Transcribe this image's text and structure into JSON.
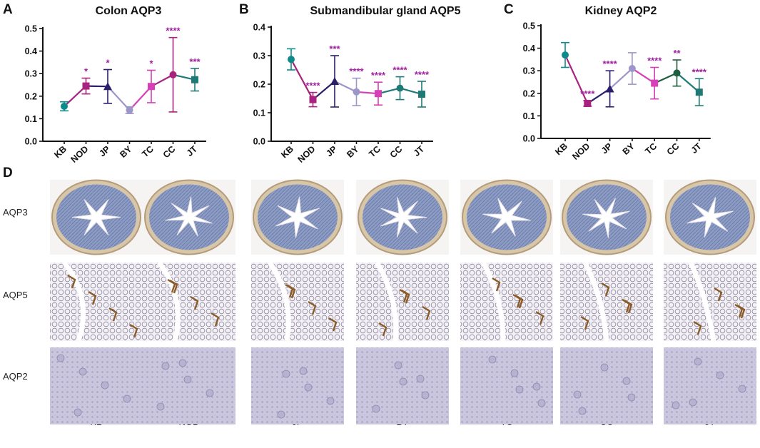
{
  "chart_data": [
    {
      "panel": "A",
      "type": "line",
      "title": "Colon  AQP3",
      "categories": [
        "KB",
        "NOD",
        "JP",
        "BY",
        "TC",
        "CC",
        "JT"
      ],
      "values": [
        0.155,
        0.245,
        0.243,
        0.138,
        0.243,
        0.295,
        0.273
      ],
      "errors": [
        0.02,
        0.035,
        0.075,
        0.015,
        0.072,
        0.165,
        0.05
      ],
      "significance": [
        "",
        "*",
        "*",
        "",
        "*",
        "****",
        "***"
      ],
      "ylim": [
        0,
        0.5
      ],
      "yticks": [
        "0.0",
        "0.1",
        "0.2",
        "0.3",
        "0.4",
        "0.5"
      ],
      "colors": [
        "#0e8a8a",
        "#a8237f",
        "#2b1f6b",
        "#9d96c9",
        "#d63fb6",
        "#a8237f",
        "#1f7a75"
      ]
    },
    {
      "panel": "B",
      "type": "line",
      "title": "Submandibular gland AQP5",
      "categories": [
        "KB",
        "NOD",
        "JP",
        "BY",
        "TC",
        "CC",
        "JT"
      ],
      "values": [
        0.287,
        0.146,
        0.21,
        0.173,
        0.167,
        0.186,
        0.165
      ],
      "errors": [
        0.037,
        0.025,
        0.09,
        0.048,
        0.04,
        0.04,
        0.045
      ],
      "significance": [
        "",
        "****",
        "***",
        "****",
        "****",
        "****",
        "****"
      ],
      "ylim": [
        0,
        0.4
      ],
      "yticks": [
        "0.0",
        "0.1",
        "0.2",
        "0.3",
        "0.4"
      ],
      "colors": [
        "#0e8a8a",
        "#a8237f",
        "#2b1f6b",
        "#9d96c9",
        "#d63fb6",
        "#1f7a75",
        "#1f7a75"
      ]
    },
    {
      "panel": "C",
      "type": "line",
      "title": "Kidney AQP2",
      "categories": [
        "KB",
        "NOD",
        "JP",
        "BY",
        "TC",
        "CC",
        "JT"
      ],
      "values": [
        0.37,
        0.155,
        0.22,
        0.31,
        0.245,
        0.29,
        0.205
      ],
      "errors": [
        0.055,
        0.012,
        0.08,
        0.07,
        0.07,
        0.058,
        0.06
      ],
      "significance": [
        "",
        "****",
        "****",
        "",
        "****",
        "**",
        "****"
      ],
      "ylim": [
        0,
        0.5
      ],
      "yticks": [
        "0.0",
        "0.1",
        "0.2",
        "0.3",
        "0.4",
        "0.5"
      ],
      "colors": [
        "#0e8a8a",
        "#a8237f",
        "#2b1f6b",
        "#9d96c9",
        "#d63fb6",
        "#1f5e3e",
        "#1f7a75"
      ]
    }
  ],
  "panel_d": {
    "letter": "D",
    "rows": [
      "AQP3",
      "AQP5",
      "AQP2"
    ],
    "columns": [
      "KB",
      "NOD",
      "JP",
      "BY",
      "TC",
      "CC",
      "JT"
    ]
  },
  "sig_color": "#a020a0"
}
